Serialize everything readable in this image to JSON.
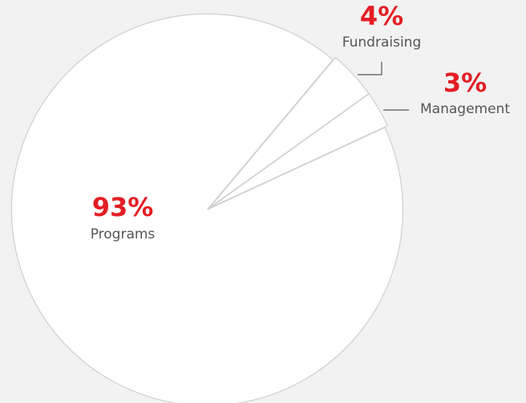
{
  "chart_data": {
    "type": "pie",
    "categories": [
      "Fundraising",
      "Management",
      "Programs"
    ],
    "values": [
      4,
      3,
      93
    ],
    "value_labels": [
      "4%",
      "3%",
      "93%"
    ],
    "color": "#ffffff"
  }
}
